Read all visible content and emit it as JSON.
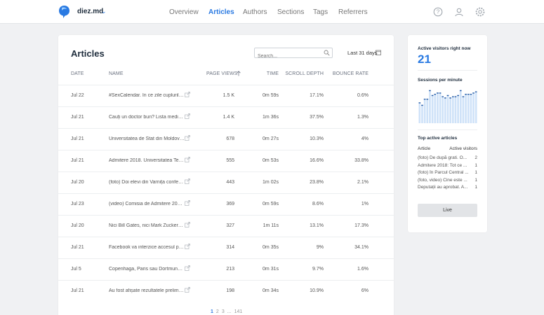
{
  "header": {
    "site_name": "diez.md",
    "nav": [
      {
        "label": "Overview"
      },
      {
        "label": "Articles"
      },
      {
        "label": "Authors"
      },
      {
        "label": "Sections"
      },
      {
        "label": "Tags"
      },
      {
        "label": "Referrers"
      }
    ],
    "active_nav": "Articles",
    "icons": [
      "help-icon",
      "user-icon",
      "settings-icon"
    ],
    "accent_color": "#2a7ae2"
  },
  "articles": {
    "title": "Articles",
    "search_placeholder": "Search...",
    "date_range": "Last 31 days",
    "columns": {
      "date": "Date",
      "name": "Name",
      "page_views": "Page views",
      "time": "Time",
      "scroll_depth": "Scroll depth",
      "bounce_rate": "Bounce rate"
    },
    "sort": {
      "column": "Page views",
      "direction": "ascending-arrow"
    },
    "rows": [
      {
        "date": "Jul 22",
        "name": "#SexCalendar. În ce zile cuplurile p...",
        "page_views": "1.5 K",
        "time": "0m 59s",
        "scroll_depth": "17.1%",
        "bounce_rate": "0.6%"
      },
      {
        "date": "Jul 21",
        "name": "Cauți un doctor bun? Lista medicilo...",
        "page_views": "1.4 K",
        "time": "1m 36s",
        "scroll_depth": "37.5%",
        "bounce_rate": "1.3%"
      },
      {
        "date": "Jul 21",
        "name": "Universitatea de Stat din Moldova ...",
        "page_views": "678",
        "time": "0m 27s",
        "scroll_depth": "10.3%",
        "bounce_rate": "4%"
      },
      {
        "date": "Jul 21",
        "name": "Admitere 2018. Universitatea Teh...",
        "page_views": "555",
        "time": "0m 53s",
        "scroll_depth": "16.6%",
        "bounce_rate": "33.8%"
      },
      {
        "date": "Jul 20",
        "name": "(foto) Doi elevi din Varnița confecți...",
        "page_views": "443",
        "time": "1m 02s",
        "scroll_depth": "23.8%",
        "bounce_rate": "2.1%"
      },
      {
        "date": "Jul 23",
        "name": "(video) Comisia de Admitere 2018...",
        "page_views": "369",
        "time": "0m 59s",
        "scroll_depth": "8.6%",
        "bounce_rate": "1%"
      },
      {
        "date": "Jul 20",
        "name": "Nici Bill Gates, nici Mark Zuckerbe...",
        "page_views": "327",
        "time": "1m 11s",
        "scroll_depth": "13.1%",
        "bounce_rate": "17.3%"
      },
      {
        "date": "Jul 21",
        "name": "Facebook va interzice accesul pent...",
        "page_views": "314",
        "time": "0m 35s",
        "scroll_depth": "9%",
        "bounce_rate": "34.1%"
      },
      {
        "date": "Jul 5",
        "name": "Copenhaga, Paris sau Dortmund la...",
        "page_views": "213",
        "time": "0m 31s",
        "scroll_depth": "9.7%",
        "bounce_rate": "1.6%"
      },
      {
        "date": "Jul 21",
        "name": "Au fost afișate rezultatele prelimin...",
        "page_views": "198",
        "time": "0m 34s",
        "scroll_depth": "10.9%",
        "bounce_rate": "6%"
      }
    ],
    "pagination": {
      "current": "1",
      "pages": [
        "2",
        "3"
      ],
      "ellipsis": "...",
      "last": "141"
    }
  },
  "realtime": {
    "active_label": "Active visitors right now",
    "active_count": "21",
    "spm_label": "Sessions per minute",
    "sessions_per_minute": [
      17,
      15,
      20,
      20,
      27,
      23,
      24,
      25,
      25,
      22,
      21,
      23,
      21,
      22,
      22,
      23,
      27,
      22,
      24,
      24,
      24,
      25,
      26
    ],
    "spm_max": 28,
    "top_label": "Top active articles",
    "col_article": "Article",
    "col_visitors": "Active visitors",
    "top_articles": [
      {
        "name": "(foto) De după grati. O...",
        "visitors": "2"
      },
      {
        "name": "Admitere 2018: Tot ce ...",
        "visitors": "1"
      },
      {
        "name": "(foto) În Parcul Central ...",
        "visitors": "1"
      },
      {
        "name": "(foto, video) Cine este ...",
        "visitors": "1"
      },
      {
        "name": "Deputații au aprobat. A...",
        "visitors": "1"
      }
    ],
    "live_button": "Live"
  }
}
